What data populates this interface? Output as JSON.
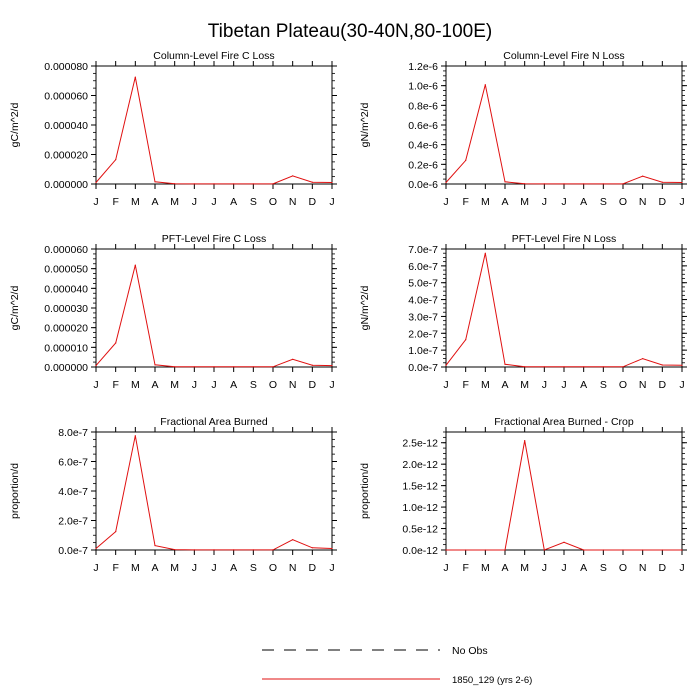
{
  "title": "Tibetan Plateau(30-40N,80-100E)",
  "months": [
    "J",
    "F",
    "M",
    "A",
    "M",
    "J",
    "J",
    "A",
    "S",
    "O",
    "N",
    "D",
    "J"
  ],
  "legend": {
    "obs_label": "No Obs",
    "model_label": "1850_129 (yrs 2-6)",
    "model_color": "#e01010"
  },
  "chart_data": [
    {
      "type": "line",
      "title": "Column-Level Fire C Loss",
      "ylabel": "gC/m^2/d",
      "ylim": [
        0,
        8e-05
      ],
      "yticks": [
        0,
        2e-05,
        4e-05,
        6e-05,
        8e-05
      ],
      "yticklabels": [
        "0.000000",
        "0.000020",
        "0.000040",
        "0.000060",
        "0.000080"
      ],
      "series": [
        {
          "name": "1850_129 (yrs 2-6)",
          "values": [
            1e-06,
            1.65e-05,
            7.25e-05,
            1.5e-06,
            2e-07,
            1e-07,
            1e-07,
            1e-07,
            1e-07,
            1e-07,
            5.5e-06,
            1.2e-06,
            1e-06
          ]
        }
      ]
    },
    {
      "type": "line",
      "title": "Column-Level Fire N Loss",
      "ylabel": "gN/m^2/d",
      "ylim": [
        0,
        1.2e-06
      ],
      "yticks": [
        0,
        2e-07,
        4e-07,
        6e-07,
        8e-07,
        1e-06,
        1.2e-06
      ],
      "yticklabels": [
        "0.0e-6",
        "0.2e-6",
        "0.4e-6",
        "0.6e-6",
        "0.8e-6",
        "1.0e-6",
        "1.2e-6"
      ],
      "series": [
        {
          "name": "1850_129 (yrs 2-6)",
          "values": [
            1.5e-08,
            2.4e-07,
            1.01e-06,
            2.2e-08,
            3e-09,
            1e-09,
            1e-09,
            1e-09,
            1e-09,
            1e-09,
            8e-08,
            1.8e-08,
            1.5e-08
          ]
        }
      ]
    },
    {
      "type": "line",
      "title": "PFT-Level Fire C Loss",
      "ylabel": "gC/m^2/d",
      "ylim": [
        0,
        6e-05
      ],
      "yticks": [
        0,
        1e-05,
        2e-05,
        3e-05,
        4e-05,
        5e-05,
        6e-05
      ],
      "yticklabels": [
        "0.000000",
        "0.000010",
        "0.000020",
        "0.000030",
        "0.000040",
        "0.000050",
        "0.000060"
      ],
      "series": [
        {
          "name": "1850_129 (yrs 2-6)",
          "values": [
            7e-07,
            1.22e-05,
            5.18e-05,
            1.1e-06,
            1e-07,
            1e-07,
            1e-07,
            1e-07,
            1e-07,
            1e-07,
            3.9e-06,
            9e-07,
            7e-07
          ]
        }
      ]
    },
    {
      "type": "line",
      "title": "PFT-Level Fire N Loss",
      "ylabel": "gN/m^2/d",
      "ylim": [
        0,
        7e-07
      ],
      "yticks": [
        0,
        1e-07,
        2e-07,
        3e-07,
        4e-07,
        5e-07,
        6e-07,
        7e-07
      ],
      "yticklabels": [
        "0.0e-7",
        "1.0e-7",
        "2.0e-7",
        "3.0e-7",
        "4.0e-7",
        "5.0e-7",
        "6.0e-7",
        "7.0e-7"
      ],
      "series": [
        {
          "name": "1850_129 (yrs 2-6)",
          "values": [
            1e-08,
            1.62e-07,
            6.75e-07,
            1.6e-08,
            2e-09,
            1e-09,
            1e-09,
            1e-09,
            1e-09,
            1e-09,
            5e-08,
            1.2e-08,
            1e-08
          ]
        }
      ]
    },
    {
      "type": "line",
      "title": "Fractional Area Burned",
      "ylabel": "proportion/d",
      "ylim": [
        0,
        8e-07
      ],
      "yticks": [
        0,
        2e-07,
        4e-07,
        6e-07,
        8e-07
      ],
      "yticklabels": [
        "0.0e-7",
        "2.0e-7",
        "4.0e-7",
        "6.0e-7",
        "8.0e-7"
      ],
      "series": [
        {
          "name": "1850_129 (yrs 2-6)",
          "values": [
            1e-08,
            1.25e-07,
            7.75e-07,
            3e-08,
            3e-09,
            1e-09,
            1e-09,
            1e-09,
            1e-09,
            1e-09,
            7e-08,
            1.5e-08,
            1e-08
          ]
        }
      ]
    },
    {
      "type": "line",
      "title": "Fractional Area Burned - Crop",
      "ylabel": "proportion/d",
      "ylim": [
        0,
        2.75e-12
      ],
      "yticks": [
        0,
        5e-13,
        1e-12,
        1.5e-12,
        2e-12,
        2.5e-12
      ],
      "yticklabels": [
        "0.0e-12",
        "0.5e-12",
        "1.0e-12",
        "1.5e-12",
        "2.0e-12",
        "2.5e-12"
      ],
      "series": [
        {
          "name": "1850_129 (yrs 2-6)",
          "values": [
            0,
            0,
            0,
            0,
            2.55e-12,
            0,
            1.8e-13,
            0,
            0,
            0,
            0,
            0,
            0
          ]
        }
      ]
    }
  ]
}
